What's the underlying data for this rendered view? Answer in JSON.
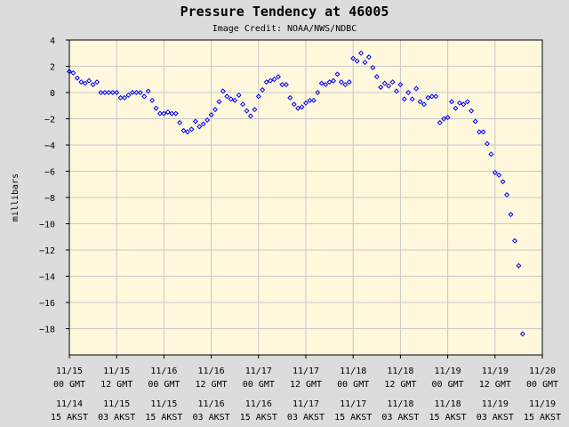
{
  "chart_data": {
    "type": "scatter",
    "title": "Pressure Tendency at 46005",
    "subtitle": "Image Credit: NOAA/NWS/NDBC",
    "ylabel": "millibars",
    "ylim": [
      -20,
      4
    ],
    "yticks": [
      4,
      2,
      0,
      -2,
      -4,
      -6,
      -8,
      -10,
      -12,
      -14,
      -16,
      -18
    ],
    "xlim_hours": [
      0,
      120
    ],
    "xticks": [
      {
        "gmt_date": "11/15",
        "gmt_time": "00 GMT",
        "local_date": "11/14",
        "local_time": "15 AKST"
      },
      {
        "gmt_date": "11/15",
        "gmt_time": "12 GMT",
        "local_date": "11/15",
        "local_time": "03 AKST"
      },
      {
        "gmt_date": "11/16",
        "gmt_time": "00 GMT",
        "local_date": "11/15",
        "local_time": "15 AKST"
      },
      {
        "gmt_date": "11/16",
        "gmt_time": "12 GMT",
        "local_date": "11/16",
        "local_time": "03 AKST"
      },
      {
        "gmt_date": "11/17",
        "gmt_time": "00 GMT",
        "local_date": "11/16",
        "local_time": "15 AKST"
      },
      {
        "gmt_date": "11/17",
        "gmt_time": "12 GMT",
        "local_date": "11/17",
        "local_time": "03 AKST"
      },
      {
        "gmt_date": "11/18",
        "gmt_time": "00 GMT",
        "local_date": "11/17",
        "local_time": "15 AKST"
      },
      {
        "gmt_date": "11/18",
        "gmt_time": "12 GMT",
        "local_date": "11/18",
        "local_time": "03 AKST"
      },
      {
        "gmt_date": "11/19",
        "gmt_time": "00 GMT",
        "local_date": "11/18",
        "local_time": "15 AKST"
      },
      {
        "gmt_date": "11/19",
        "gmt_time": "12 GMT",
        "local_date": "11/19",
        "local_time": "03 AKST"
      },
      {
        "gmt_date": "11/20",
        "gmt_time": "00 GMT",
        "local_date": "11/19",
        "local_time": "15 AKST"
      }
    ],
    "series": [
      {
        "color": "#0000ff",
        "points": [
          [
            0.0,
            1.6
          ],
          [
            1.0,
            1.5
          ],
          [
            2.0,
            1.1
          ],
          [
            3.0,
            0.8
          ],
          [
            4.0,
            0.7
          ],
          [
            5.0,
            0.9
          ],
          [
            6.0,
            0.6
          ],
          [
            7.0,
            0.8
          ],
          [
            8.0,
            0.0
          ],
          [
            9.0,
            0.0
          ],
          [
            10.0,
            0.0
          ],
          [
            11.0,
            0.0
          ],
          [
            12.0,
            0.0
          ],
          [
            13.0,
            -0.4
          ],
          [
            14.0,
            -0.4
          ],
          [
            15.0,
            -0.2
          ],
          [
            16.0,
            0.0
          ],
          [
            17.0,
            0.0
          ],
          [
            18.0,
            0.0
          ],
          [
            19.0,
            -0.3
          ],
          [
            20.0,
            0.1
          ],
          [
            21.0,
            -0.6
          ],
          [
            22.0,
            -1.2
          ],
          [
            23.0,
            -1.6
          ],
          [
            24.0,
            -1.6
          ],
          [
            25.0,
            -1.5
          ],
          [
            26.0,
            -1.6
          ],
          [
            27.0,
            -1.6
          ],
          [
            28.0,
            -2.3
          ],
          [
            29.0,
            -2.9
          ],
          [
            30.0,
            -3.0
          ],
          [
            31.0,
            -2.8
          ],
          [
            32.0,
            -2.2
          ],
          [
            33.0,
            -2.6
          ],
          [
            34.0,
            -2.4
          ],
          [
            35.0,
            -2.1
          ],
          [
            36.0,
            -1.7
          ],
          [
            37.0,
            -1.3
          ],
          [
            38.0,
            -0.7
          ],
          [
            39.0,
            0.1
          ],
          [
            40.0,
            -0.3
          ],
          [
            41.0,
            -0.5
          ],
          [
            42.0,
            -0.6
          ],
          [
            43.0,
            -0.2
          ],
          [
            44.0,
            -0.9
          ],
          [
            45.0,
            -1.4
          ],
          [
            46.0,
            -1.8
          ],
          [
            47.0,
            -1.3
          ],
          [
            48.0,
            -0.3
          ],
          [
            49.0,
            0.2
          ],
          [
            50.0,
            0.8
          ],
          [
            51.0,
            0.9
          ],
          [
            52.0,
            1.0
          ],
          [
            53.0,
            1.2
          ],
          [
            54.0,
            0.6
          ],
          [
            55.0,
            0.6
          ],
          [
            56.0,
            -0.4
          ],
          [
            57.0,
            -0.9
          ],
          [
            58.0,
            -1.2
          ],
          [
            59.0,
            -1.1
          ],
          [
            60.0,
            -0.8
          ],
          [
            61.0,
            -0.6
          ],
          [
            62.0,
            -0.6
          ],
          [
            63.0,
            0.0
          ],
          [
            64.0,
            0.7
          ],
          [
            65.0,
            0.6
          ],
          [
            66.0,
            0.8
          ],
          [
            67.0,
            0.9
          ],
          [
            68.0,
            1.4
          ],
          [
            69.0,
            0.8
          ],
          [
            70.0,
            0.6
          ],
          [
            71.0,
            0.8
          ],
          [
            72.0,
            2.6
          ],
          [
            73.0,
            2.4
          ],
          [
            74.0,
            3.0
          ],
          [
            75.0,
            2.3
          ],
          [
            76.0,
            2.7
          ],
          [
            77.0,
            1.9
          ],
          [
            78.0,
            1.2
          ],
          [
            79.0,
            0.4
          ],
          [
            80.0,
            0.7
          ],
          [
            81.0,
            0.5
          ],
          [
            82.0,
            0.8
          ],
          [
            83.0,
            0.1
          ],
          [
            84.0,
            0.6
          ],
          [
            85.0,
            -0.5
          ],
          [
            86.0,
            0.0
          ],
          [
            87.0,
            -0.5
          ],
          [
            88.0,
            0.3
          ],
          [
            89.0,
            -0.7
          ],
          [
            90.0,
            -0.9
          ],
          [
            91.0,
            -0.4
          ],
          [
            92.0,
            -0.3
          ],
          [
            93.0,
            -0.3
          ],
          [
            94.0,
            -2.3
          ],
          [
            95.0,
            -2.0
          ],
          [
            96.0,
            -1.9
          ],
          [
            97.0,
            -0.7
          ],
          [
            98.0,
            -1.2
          ],
          [
            99.0,
            -0.8
          ],
          [
            100.0,
            -0.9
          ],
          [
            101.0,
            -0.7
          ],
          [
            102.0,
            -1.4
          ],
          [
            103.0,
            -2.2
          ],
          [
            104.0,
            -3.0
          ],
          [
            105.0,
            -3.0
          ],
          [
            106.0,
            -3.9
          ],
          [
            107.0,
            -4.7
          ],
          [
            108.0,
            -6.1
          ],
          [
            109.0,
            -6.3
          ],
          [
            110.0,
            -6.8
          ],
          [
            111.0,
            -7.8
          ],
          [
            112.0,
            -9.3
          ],
          [
            113.0,
            -11.3
          ],
          [
            114.0,
            -13.2
          ],
          [
            115.0,
            -18.4
          ]
        ]
      }
    ],
    "grid": true,
    "marker": "diamond",
    "plot_background": "#fff8dc",
    "page_background": "#dcdcdc",
    "grid_color": "#c8c8c8"
  }
}
